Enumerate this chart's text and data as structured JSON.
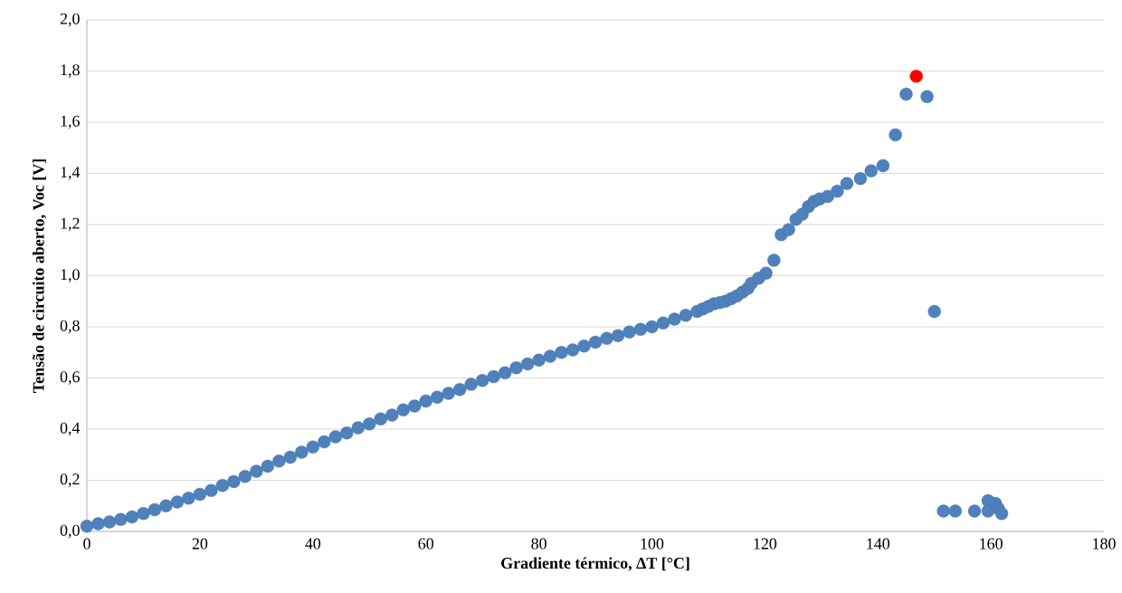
{
  "chart_data": {
    "type": "scatter",
    "xlabel": "Gradiente térmico, ΔT [°C]",
    "ylabel": "Tensão de circuito aberto, Voc [V]",
    "xlim": [
      0,
      180
    ],
    "xticks": [
      0,
      20,
      40,
      60,
      80,
      100,
      120,
      140,
      160,
      180
    ],
    "ylim": [
      0,
      2.0
    ],
    "yticks": [
      {
        "value": 0,
        "label": "0,0"
      },
      {
        "value": 0.2,
        "label": "0,2"
      },
      {
        "value": 0.4,
        "label": "0,4"
      },
      {
        "value": 0.6,
        "label": "0,6"
      },
      {
        "value": 0.8,
        "label": "0,8"
      },
      {
        "value": 1.0,
        "label": "1,0"
      },
      {
        "value": 1.2,
        "label": "1,2"
      },
      {
        "value": 1.4,
        "label": "1,4"
      },
      {
        "value": 1.6,
        "label": "1,6"
      },
      {
        "value": 1.8,
        "label": "1,8"
      },
      {
        "value": 2.0,
        "label": "2,0"
      }
    ],
    "grid": "y",
    "marker": "circle",
    "series": [
      {
        "color": "#4f81bd",
        "x": [
          0,
          2,
          4,
          6,
          8,
          10,
          12,
          14,
          16,
          18,
          20,
          22,
          24,
          26,
          28,
          30,
          32,
          34,
          36,
          38,
          40,
          42,
          44,
          46,
          48,
          50,
          52,
          54,
          56,
          58,
          60,
          62,
          64,
          66,
          68,
          70,
          72,
          74,
          76,
          78,
          80,
          82,
          84,
          86,
          88,
          90,
          92,
          94,
          96,
          98,
          100,
          102,
          104,
          106,
          108,
          109,
          110,
          111,
          112,
          113,
          114,
          115,
          116,
          117,
          117.6,
          118.9,
          120.2,
          121.6,
          122.9,
          124.2,
          125.5,
          126.6,
          127.7,
          128.7,
          129.7,
          131.1,
          132.8,
          134.5,
          136.9,
          138.8,
          140.9,
          143.1,
          145.0,
          148.7,
          150.0,
          151.6,
          153.7,
          157.1,
          159.5,
          159.5,
          160.8,
          161.3,
          161.9
        ],
        "values": [
          0.02,
          0.03,
          0.037,
          0.047,
          0.057,
          0.07,
          0.085,
          0.1,
          0.115,
          0.13,
          0.145,
          0.16,
          0.18,
          0.195,
          0.215,
          0.235,
          0.255,
          0.275,
          0.29,
          0.31,
          0.33,
          0.35,
          0.37,
          0.385,
          0.405,
          0.42,
          0.44,
          0.455,
          0.475,
          0.49,
          0.51,
          0.525,
          0.54,
          0.555,
          0.575,
          0.59,
          0.605,
          0.62,
          0.64,
          0.655,
          0.67,
          0.685,
          0.7,
          0.71,
          0.725,
          0.74,
          0.755,
          0.765,
          0.78,
          0.79,
          0.8,
          0.815,
          0.83,
          0.845,
          0.86,
          0.87,
          0.88,
          0.89,
          0.895,
          0.9,
          0.91,
          0.92,
          0.935,
          0.95,
          0.97,
          0.99,
          1.01,
          1.06,
          1.16,
          1.18,
          1.22,
          1.24,
          1.27,
          1.29,
          1.3,
          1.31,
          1.33,
          1.36,
          1.38,
          1.41,
          1.43,
          1.55,
          1.71,
          1.7,
          0.86,
          0.08,
          0.08,
          0.08,
          0.12,
          0.08,
          0.11,
          0.09,
          0.07
        ]
      },
      {
        "color": "#ff0000",
        "x": [
          146.8
        ],
        "values": [
          1.78
        ]
      }
    ]
  }
}
